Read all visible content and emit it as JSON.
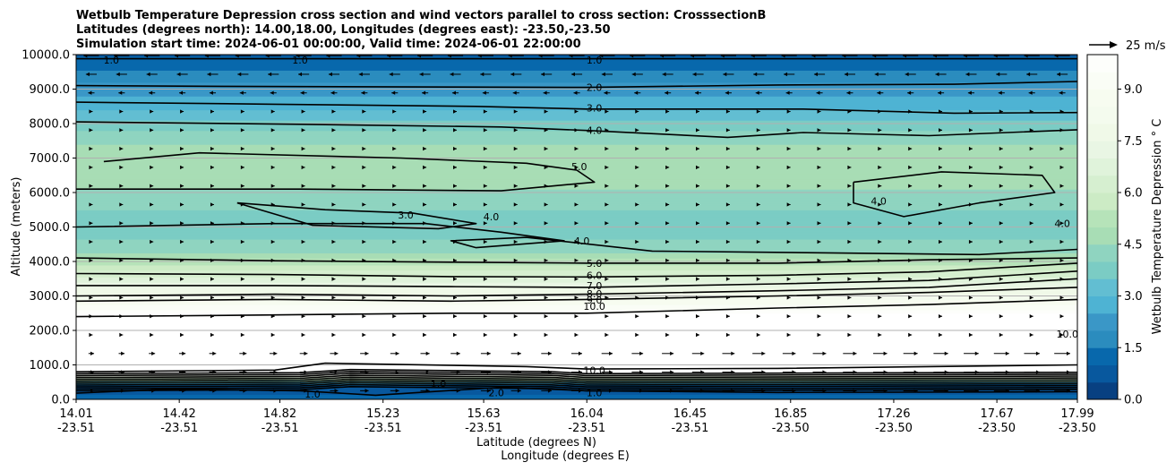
{
  "chart_data": {
    "type": "heatmap",
    "title_lines": [
      "Wetbulb Temperature Depression cross section and wind vectors parallel to cross section: CrosssectionB",
      "Latitudes (degrees north): 14.00,18.00, Longitudes (degrees east): -23.50,-23.50",
      "Simulation start time: 2024-06-01 00:00:00, Valid time: 2024-06-01 22:00:00"
    ],
    "ylabel": "Altitude (meters)",
    "xlabel_lat": "Latitude (degrees N)",
    "xlabel_lon": "Longitude (degrees E)",
    "ylim": [
      0,
      10000
    ],
    "y_ticks": [
      "0.0",
      "1000.0",
      "2000.0",
      "3000.0",
      "4000.0",
      "5000.0",
      "6000.0",
      "7000.0",
      "8000.0",
      "9000.0",
      "10000.0"
    ],
    "y_tick_values": [
      0,
      1000,
      2000,
      3000,
      4000,
      5000,
      6000,
      7000,
      8000,
      9000,
      10000
    ],
    "xlim": [
      14.01,
      17.99
    ],
    "x_ticks_lat": [
      "14.01",
      "14.42",
      "14.82",
      "15.23",
      "15.63",
      "16.04",
      "16.45",
      "16.85",
      "17.26",
      "17.67",
      "17.99"
    ],
    "x_ticks_lon": [
      "-23.51",
      "-23.51",
      "-23.51",
      "-23.51",
      "-23.51",
      "-23.51",
      "-23.51",
      "-23.50",
      "-23.50",
      "-23.50",
      "-23.50"
    ],
    "x_tick_values": [
      14.01,
      14.42,
      14.82,
      15.23,
      15.63,
      16.04,
      16.45,
      16.85,
      17.26,
      17.67,
      17.99
    ],
    "grid": "horizontal",
    "colorbar": {
      "label": "Wetbulb Temperature Depression ° C",
      "min": 0,
      "max": 10,
      "levels": 20,
      "ticks": [
        "0.0",
        "1.5",
        "3.0",
        "4.5",
        "6.0",
        "7.5",
        "9.0"
      ],
      "tick_values": [
        0,
        1.5,
        3,
        4.5,
        6,
        7.5,
        9
      ],
      "colors": [
        "#084081",
        "#08589e",
        "#0868ac",
        "#2b8cbe",
        "#3a97c7",
        "#4eb3d3",
        "#62bed2",
        "#7bccc4",
        "#8fd4c0",
        "#a8ddb5",
        "#b6e3b9",
        "#ccebc5",
        "#d6efd0",
        "#e0f3db",
        "#e9f6e4",
        "#f0f9e8",
        "#f4fbee",
        "#f7fcf0",
        "#fafdf6",
        "#fdfefb"
      ]
    },
    "quiver_key": {
      "label": "25 m/s",
      "speed_mps": 25
    },
    "layers": [
      {
        "alt": 0,
        "value": 1.2
      },
      {
        "alt": 400,
        "value": 0.6
      },
      {
        "alt": 800,
        "value": 11
      },
      {
        "alt": 2300,
        "value": 10.8
      },
      {
        "alt": 2600,
        "value": 9.5
      },
      {
        "alt": 3000,
        "value": 8.2
      },
      {
        "alt": 3400,
        "value": 7.0
      },
      {
        "alt": 3800,
        "value": 5.8
      },
      {
        "alt": 4300,
        "value": 4.4
      },
      {
        "alt": 5000,
        "value": 3.6
      },
      {
        "alt": 6200,
        "value": 4.6
      },
      {
        "alt": 7000,
        "value": 5.0
      },
      {
        "alt": 7800,
        "value": 4.0
      },
      {
        "alt": 8400,
        "value": 3.0
      },
      {
        "alt": 9200,
        "value": 2.0
      },
      {
        "alt": 10000,
        "value": 0.9
      }
    ],
    "contours": [
      {
        "label": "1.0",
        "points": [
          [
            14.01,
            9880
          ],
          [
            17.99,
            9880
          ]
        ]
      },
      {
        "label": "2.0",
        "points": [
          [
            14.01,
            9100
          ],
          [
            14.6,
            9080
          ],
          [
            15.5,
            9060
          ],
          [
            16.04,
            9050
          ],
          [
            16.8,
            9120
          ],
          [
            17.5,
            9140
          ],
          [
            17.99,
            9220
          ]
        ]
      },
      {
        "label": "3.0",
        "points": [
          [
            14.01,
            8620
          ],
          [
            14.8,
            8560
          ],
          [
            15.6,
            8500
          ],
          [
            16.04,
            8420
          ],
          [
            16.9,
            8420
          ],
          [
            17.5,
            8300
          ],
          [
            17.99,
            8320
          ]
        ]
      },
      {
        "label": "4.0",
        "points": [
          [
            14.01,
            8050
          ],
          [
            14.9,
            7980
          ],
          [
            15.7,
            7900
          ],
          [
            16.04,
            7800
          ],
          [
            16.6,
            7600
          ],
          [
            16.9,
            7740
          ],
          [
            17.4,
            7650
          ],
          [
            17.99,
            7820
          ]
        ]
      },
      {
        "label": "5.0",
        "points": [
          [
            14.12,
            6900
          ],
          [
            14.5,
            7150
          ],
          [
            15.3,
            7000
          ],
          [
            15.8,
            6850
          ],
          [
            16.0,
            6650
          ],
          [
            16.07,
            6300
          ],
          [
            15.7,
            6050
          ],
          [
            14.9,
            6100
          ],
          [
            14.01,
            6100
          ]
        ]
      },
      {
        "label": "3.0",
        "points": [
          [
            14.65,
            5700
          ],
          [
            15.0,
            5500
          ],
          [
            15.35,
            5400
          ],
          [
            15.6,
            5100
          ],
          [
            15.45,
            4950
          ],
          [
            14.95,
            5050
          ],
          [
            14.65,
            5700
          ]
        ]
      },
      {
        "label": "4.0",
        "points": [
          [
            14.01,
            5000
          ],
          [
            14.8,
            5100
          ],
          [
            15.4,
            5100
          ],
          [
            15.7,
            4850
          ],
          [
            15.95,
            4600
          ],
          [
            15.6,
            4400
          ],
          [
            15.5,
            4600
          ],
          [
            15.8,
            4700
          ],
          [
            16.3,
            4300
          ],
          [
            17.0,
            4250
          ],
          [
            17.6,
            4200
          ],
          [
            17.99,
            4350
          ]
        ]
      },
      {
        "label": "4.0",
        "points": [
          [
            17.1,
            6300
          ],
          [
            17.45,
            6600
          ],
          [
            17.85,
            6500
          ],
          [
            17.9,
            6000
          ],
          [
            17.6,
            5700
          ],
          [
            17.3,
            5300
          ],
          [
            17.1,
            5700
          ],
          [
            17.1,
            6300
          ]
        ]
      },
      {
        "label": "5.0",
        "points": [
          [
            14.01,
            4100
          ],
          [
            14.8,
            4020
          ],
          [
            15.5,
            3980
          ],
          [
            16.04,
            3950
          ],
          [
            16.8,
            3950
          ],
          [
            17.4,
            4050
          ],
          [
            17.99,
            4100
          ]
        ]
      },
      {
        "label": "6.0",
        "points": [
          [
            14.01,
            3650
          ],
          [
            14.8,
            3620
          ],
          [
            15.5,
            3560
          ],
          [
            16.04,
            3550
          ],
          [
            16.8,
            3600
          ],
          [
            17.4,
            3700
          ],
          [
            17.99,
            3950
          ]
        ]
      },
      {
        "label": "7.0",
        "points": [
          [
            14.01,
            3300
          ],
          [
            14.8,
            3300
          ],
          [
            15.5,
            3270
          ],
          [
            16.04,
            3250
          ],
          [
            16.8,
            3350
          ],
          [
            17.4,
            3450
          ],
          [
            17.99,
            3720
          ]
        ]
      },
      {
        "label": "8.0",
        "points": [
          [
            14.01,
            3000
          ],
          [
            14.8,
            3050
          ],
          [
            15.5,
            3000
          ],
          [
            16.04,
            3050
          ],
          [
            16.8,
            3150
          ],
          [
            17.4,
            3250
          ],
          [
            17.99,
            3500
          ]
        ]
      },
      {
        "label": "9.0",
        "points": [
          [
            14.01,
            2850
          ],
          [
            14.8,
            2900
          ],
          [
            15.5,
            2850
          ],
          [
            16.04,
            2900
          ],
          [
            16.8,
            3000
          ],
          [
            17.4,
            3100
          ],
          [
            17.99,
            3250
          ]
        ]
      },
      {
        "label": "10.0",
        "points": [
          [
            14.01,
            2400
          ],
          [
            14.8,
            2450
          ],
          [
            15.5,
            2500
          ],
          [
            16.04,
            2500
          ],
          [
            16.8,
            2650
          ],
          [
            17.4,
            2750
          ],
          [
            17.99,
            2900
          ]
        ]
      },
      {
        "label": "10.0",
        "points": [
          [
            14.01,
            800
          ],
          [
            14.8,
            850
          ],
          [
            15.0,
            1050
          ],
          [
            15.8,
            950
          ],
          [
            16.04,
            880
          ],
          [
            16.8,
            900
          ],
          [
            17.4,
            950
          ],
          [
            17.99,
            1000
          ]
        ]
      },
      {
        "label": "1.0",
        "points": [
          [
            14.01,
            180
          ],
          [
            14.4,
            300
          ],
          [
            14.9,
            250
          ],
          [
            15.2,
            120
          ],
          [
            15.7,
            350
          ],
          [
            16.04,
            250
          ],
          [
            16.8,
            200
          ],
          [
            17.99,
            220
          ]
        ]
      }
    ],
    "contour_labels": [
      {
        "text": "1.0",
        "x": 14.15,
        "y": 9850
      },
      {
        "text": "1.0",
        "x": 14.9,
        "y": 9850
      },
      {
        "text": "1.0",
        "x": 16.07,
        "y": 9850
      },
      {
        "text": "2.0",
        "x": 16.07,
        "y": 9050
      },
      {
        "text": "3.0",
        "x": 16.07,
        "y": 8450
      },
      {
        "text": "4.0",
        "x": 16.07,
        "y": 7800
      },
      {
        "text": "5.0",
        "x": 16.01,
        "y": 6750
      },
      {
        "text": "3.0",
        "x": 15.32,
        "y": 5350
      },
      {
        "text": "4.0",
        "x": 15.66,
        "y": 5300
      },
      {
        "text": "4.0",
        "x": 16.02,
        "y": 4600
      },
      {
        "text": "4.0",
        "x": 17.2,
        "y": 5750
      },
      {
        "text": "4.0",
        "x": 17.93,
        "y": 5100
      },
      {
        "text": "5.0",
        "x": 16.07,
        "y": 3950
      },
      {
        "text": "6.0",
        "x": 16.07,
        "y": 3600
      },
      {
        "text": "7.0",
        "x": 16.07,
        "y": 3300
      },
      {
        "text": "8.0",
        "x": 16.07,
        "y": 3060
      },
      {
        "text": "9.0",
        "x": 16.07,
        "y": 2880
      },
      {
        "text": "10.0",
        "x": 16.07,
        "y": 2700
      },
      {
        "text": "10.0",
        "x": 17.95,
        "y": 1900
      },
      {
        "text": "10.0",
        "x": 16.07,
        "y": 850
      },
      {
        "text": "1.0",
        "x": 14.95,
        "y": 150
      },
      {
        "text": "1.0",
        "x": 15.45,
        "y": 450
      },
      {
        "text": "2.0",
        "x": 15.68,
        "y": 200
      },
      {
        "text": "1.0",
        "x": 16.07,
        "y": 200
      }
    ]
  }
}
